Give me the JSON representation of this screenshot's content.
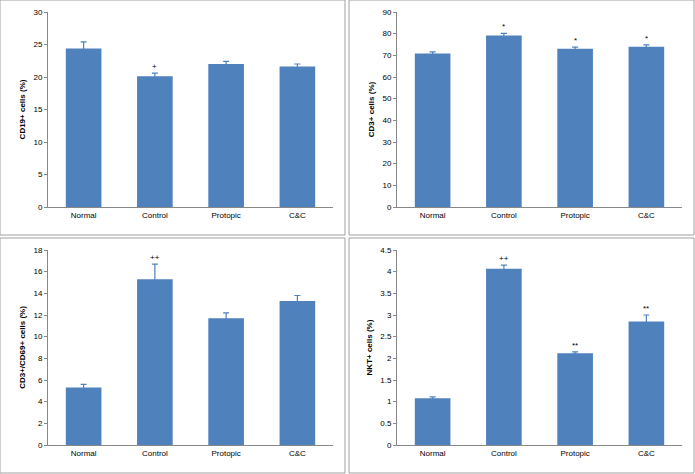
{
  "chart_data": [
    {
      "type": "bar",
      "y_label": "CD19+ cells (%)",
      "categories": [
        "Normal",
        "Control",
        "Protopic",
        "C&C"
      ],
      "values": [
        24.4,
        20.1,
        22.0,
        21.6
      ],
      "errors": [
        1.0,
        0.5,
        0.4,
        0.4
      ],
      "color": "#4f81bd",
      "ylim": [
        0,
        30
      ],
      "yticks": [
        0,
        5,
        10,
        15,
        20,
        25,
        30
      ],
      "grid": false,
      "annotations": [
        {
          "category": "Control",
          "text": "+"
        }
      ]
    },
    {
      "type": "bar",
      "y_label": "CD3+ cells (%)",
      "categories": [
        "Normal",
        "Control",
        "Protopic",
        "C&C"
      ],
      "values": [
        70.8,
        79.2,
        73.0,
        74.0
      ],
      "errors": [
        0.8,
        0.9,
        0.8,
        0.8
      ],
      "color": "#4f81bd",
      "ylim": [
        0,
        90
      ],
      "yticks": [
        0,
        10,
        20,
        30,
        40,
        50,
        60,
        70,
        80,
        90
      ],
      "grid": false,
      "annotations": [
        {
          "category": "Control",
          "text": "*"
        },
        {
          "category": "Protopic",
          "text": "*"
        },
        {
          "category": "C&C",
          "text": "*"
        }
      ]
    },
    {
      "type": "bar",
      "y_label": "CD3+/CD69+ cells (%)",
      "categories": [
        "Normal",
        "Control",
        "Protopic",
        "C&C"
      ],
      "values": [
        5.3,
        15.3,
        11.7,
        13.3
      ],
      "errors": [
        0.3,
        1.4,
        0.5,
        0.5
      ],
      "color": "#4f81bd",
      "ylim": [
        0,
        18
      ],
      "yticks": [
        0,
        2,
        4,
        6,
        8,
        10,
        12,
        14,
        16,
        18
      ],
      "grid": false,
      "annotations": [
        {
          "category": "Control",
          "text": "++"
        }
      ]
    },
    {
      "type": "bar",
      "y_label": "NKT+ cells (%)",
      "categories": [
        "Normal",
        "Control",
        "Protopic",
        "C&C"
      ],
      "values": [
        1.08,
        4.07,
        2.12,
        2.85
      ],
      "errors": [
        0.03,
        0.08,
        0.03,
        0.15
      ],
      "color": "#4f81bd",
      "ylim": [
        0,
        4.5
      ],
      "yticks": [
        0,
        0.5,
        1,
        1.5,
        2,
        2.5,
        3,
        3.5,
        4,
        4.5
      ],
      "grid": false,
      "annotations": [
        {
          "category": "Control",
          "text": "++"
        },
        {
          "category": "Protopic",
          "text": "**"
        },
        {
          "category": "C&C",
          "text": "**"
        }
      ]
    }
  ]
}
